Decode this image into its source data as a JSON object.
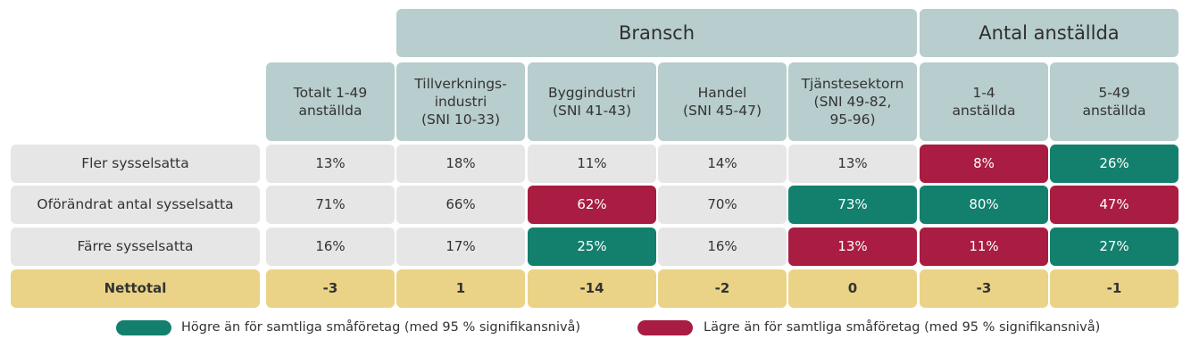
{
  "chart_data": {
    "type": "table",
    "group_headers": [
      "Bransch",
      "Antal anställda"
    ],
    "columns": [
      "Totalt 1-49\nanställda",
      "Tillverknings-\nindustri\n(SNI 10-33)",
      "Byggindustri\n(SNI 41-43)",
      "Handel\n(SNI 45-47)",
      "Tjänstesektorn\n(SNI 49-82,\n95-96)",
      "1-4\nanställda",
      "5-49\nanställda"
    ],
    "rows": [
      {
        "label": "Fler sysselsatta",
        "values": [
          "13%",
          "18%",
          "11%",
          "14%",
          "13%",
          "8%",
          "26%"
        ],
        "significance": [
          "",
          "",
          "",
          "",
          "",
          "low",
          "high"
        ]
      },
      {
        "label": "Oförändrat antal sysselsatta",
        "values": [
          "71%",
          "66%",
          "62%",
          "70%",
          "73%",
          "80%",
          "47%"
        ],
        "significance": [
          "",
          "",
          "low",
          "",
          "high",
          "high",
          "low"
        ]
      },
      {
        "label": "Färre sysselsatta",
        "values": [
          "16%",
          "17%",
          "25%",
          "16%",
          "13%",
          "11%",
          "27%"
        ],
        "significance": [
          "",
          "",
          "high",
          "",
          "low",
          "low",
          "high"
        ]
      }
    ],
    "net_row": {
      "label": "Nettotal",
      "values": [
        "-3",
        "1",
        "-14",
        "-2",
        "0",
        "-3",
        "-1"
      ]
    },
    "legend": [
      {
        "label": "Högre än för samtliga småföretag (med 95 % signifikansnivå)",
        "color": "#13806d"
      },
      {
        "label": "Lägre än för samtliga småföretag (med 95 % signifikansnivå)",
        "color": "#a81d41"
      }
    ]
  }
}
